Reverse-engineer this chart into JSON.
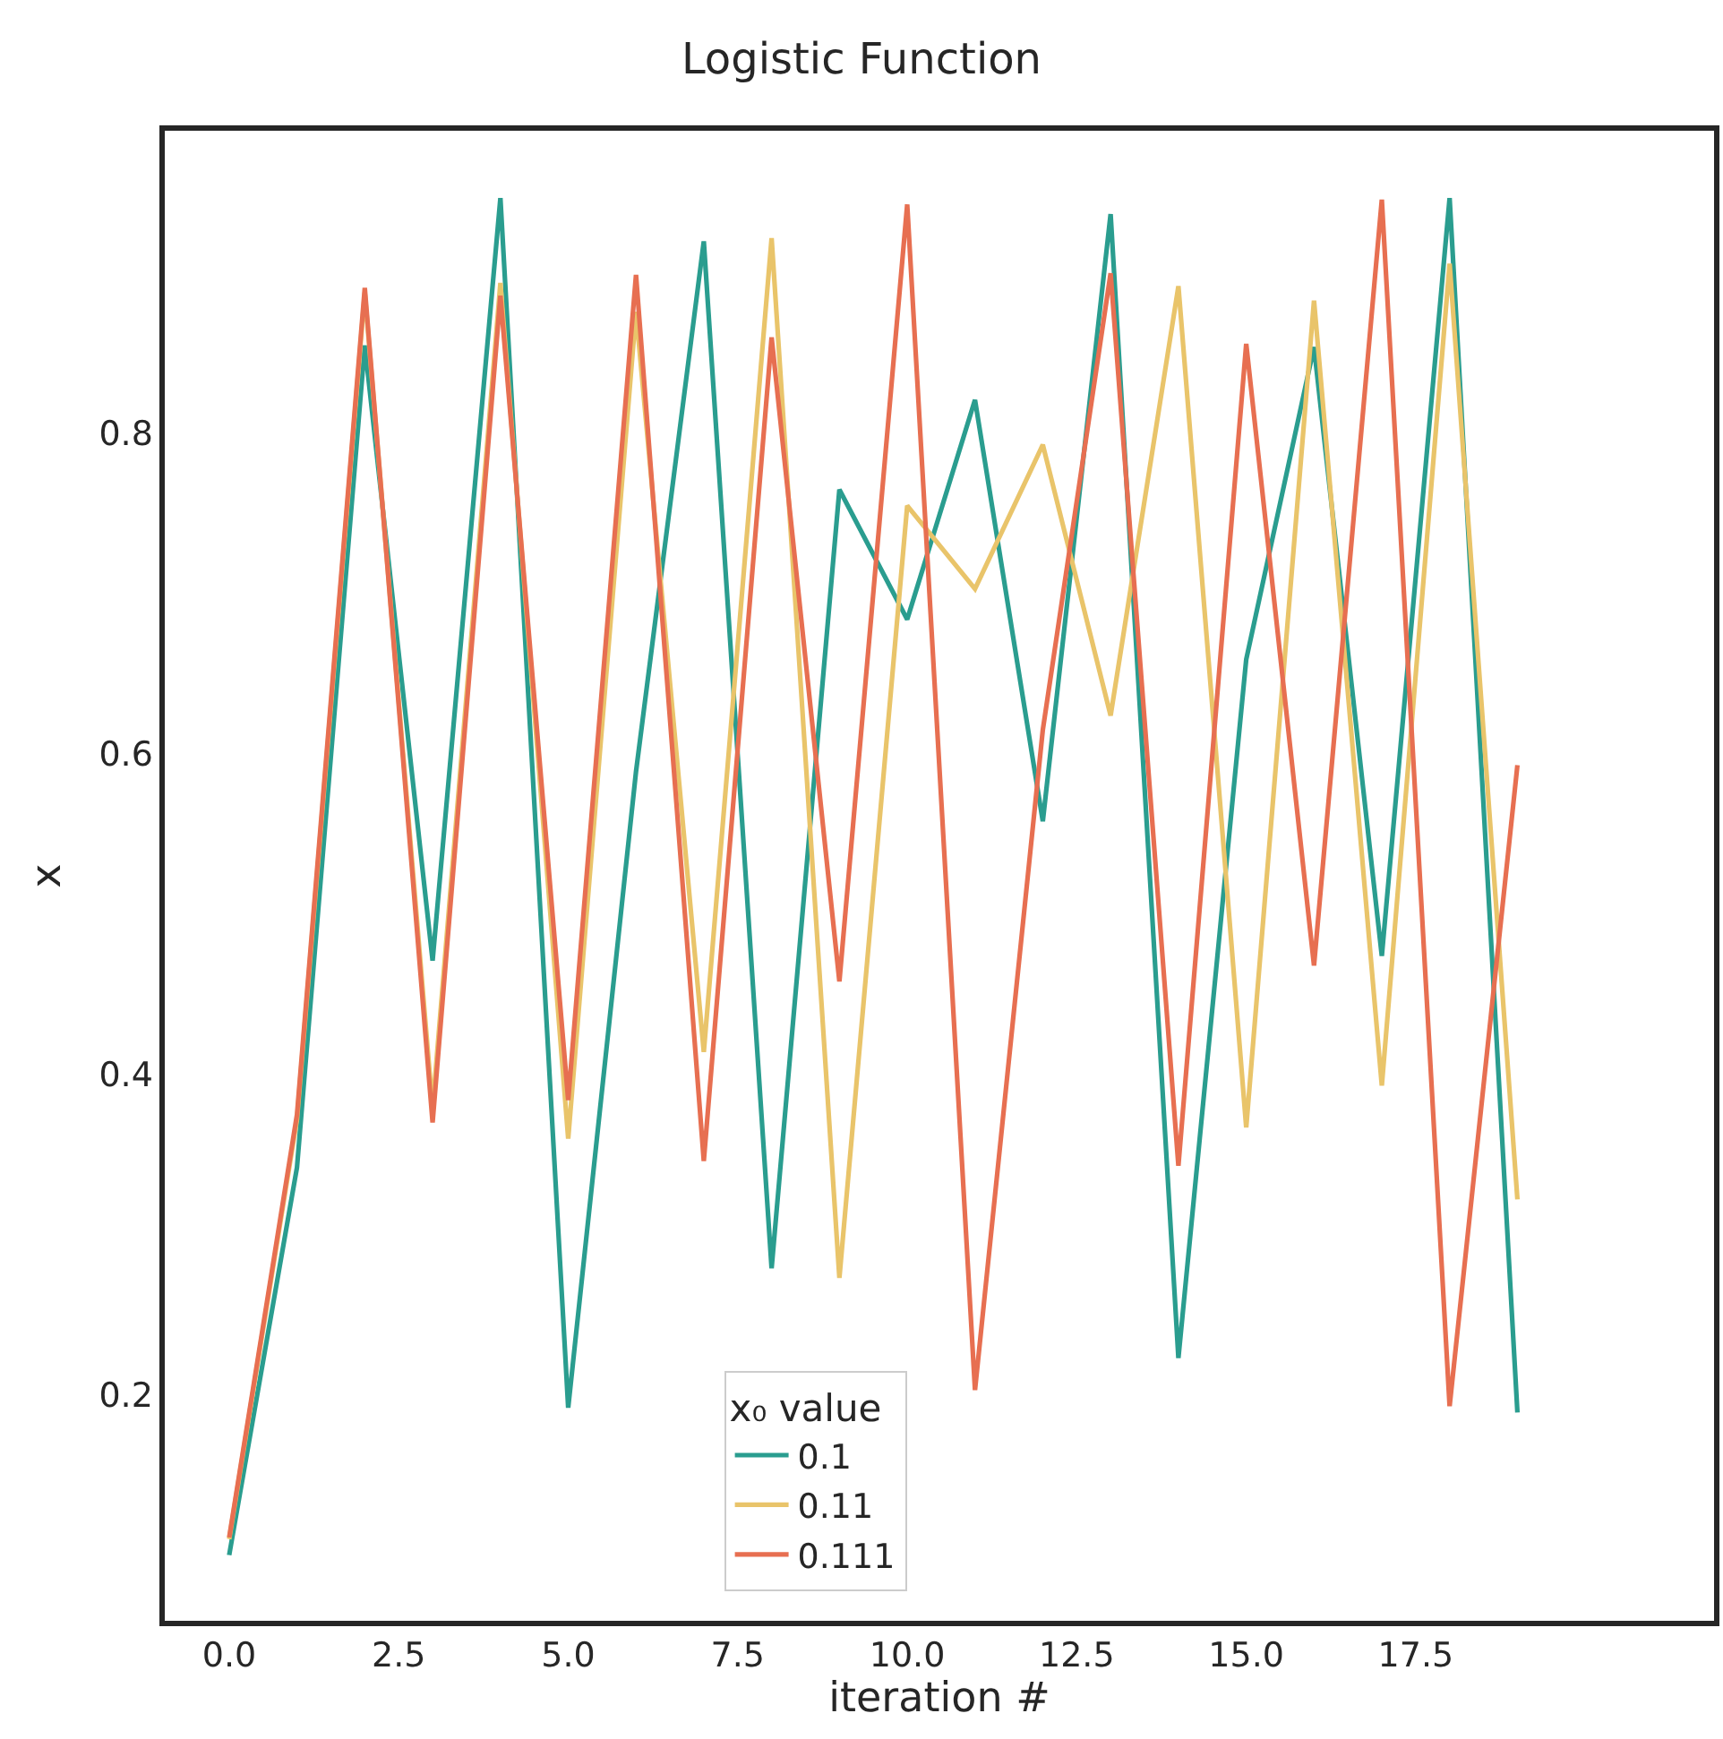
{
  "chart_data": {
    "type": "line",
    "title": "Logistic Function",
    "xlabel": "iteration #",
    "ylabel": "x",
    "legend_title": "x₀ value",
    "x": [
      0,
      1,
      2,
      3,
      4,
      5,
      6,
      7,
      8,
      9,
      10,
      11,
      12,
      13,
      14,
      15,
      16,
      17,
      18,
      19
    ],
    "series": [
      {
        "name": "0.1",
        "color": "#2a9d8f",
        "values": [
          0.1,
          0.342,
          0.855,
          0.471,
          0.947,
          0.192,
          0.589,
          0.92,
          0.279,
          0.765,
          0.684,
          0.821,
          0.558,
          0.937,
          0.223,
          0.659,
          0.854,
          0.474,
          0.947,
          0.189
        ]
      },
      {
        "name": "0.11",
        "color": "#e9c46a",
        "values": [
          0.11,
          0.372,
          0.888,
          0.379,
          0.894,
          0.36,
          0.876,
          0.414,
          0.922,
          0.273,
          0.755,
          0.703,
          0.793,
          0.624,
          0.892,
          0.367,
          0.883,
          0.393,
          0.906,
          0.322
        ]
      },
      {
        "name": "0.111",
        "color": "#e76f51",
        "values": [
          0.111,
          0.375,
          0.891,
          0.37,
          0.886,
          0.384,
          0.899,
          0.346,
          0.86,
          0.458,
          0.943,
          0.203,
          0.615,
          0.9,
          0.343,
          0.856,
          0.468,
          0.946,
          0.193,
          0.593
        ]
      }
    ],
    "xlim": [
      -0.95,
      21.9
    ],
    "ylim": [
      0.059,
      0.989
    ],
    "xticks": [
      {
        "value": 0,
        "label": "0.0"
      },
      {
        "value": 2.5,
        "label": "2.5"
      },
      {
        "value": 5,
        "label": "5.0"
      },
      {
        "value": 7.5,
        "label": "7.5"
      },
      {
        "value": 10,
        "label": "10.0"
      },
      {
        "value": 12.5,
        "label": "12.5"
      },
      {
        "value": 15,
        "label": "15.0"
      },
      {
        "value": 17.5,
        "label": "17.5"
      }
    ],
    "yticks": [
      0.2,
      0.4,
      0.6,
      0.8
    ],
    "legend": "bottom",
    "line_style": "solid",
    "marker": "none"
  }
}
